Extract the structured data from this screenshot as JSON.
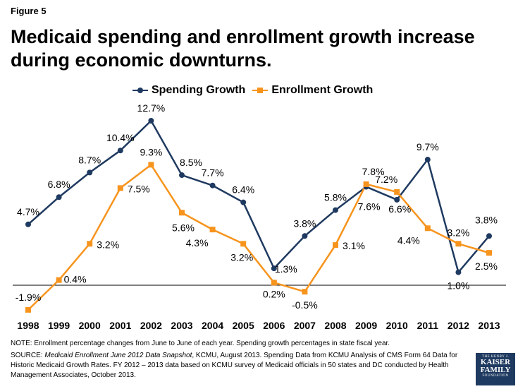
{
  "figure_label": "Figure 5",
  "title": "Medicaid spending and enrollment growth increase during economic downturns.",
  "note": "NOTE: Enrollment percentage changes from June to June of each year. Spending growth percentages in state fiscal year.",
  "source": {
    "prefix": "SOURCE: ",
    "italic": "Medicaid Enrollment June 2012 Data Snapshot",
    "rest": ", KCMU, August 2013. Spending Data from KCMU Analysis of CMS Form 64 Data for Historic Medicaid Growth Rates.  FY 2012 – 2013 data based on KCMU survey of Medicaid officials in 50 states and DC conducted by Health Management Associates, October 2013."
  },
  "logo": {
    "line1": "THE HENRY J.",
    "line2": "KAISER",
    "line3": "FAMILY",
    "line4": "FOUNDATION"
  },
  "chart_data": {
    "type": "line",
    "title": "",
    "xlabel": "",
    "ylabel": "",
    "categories": [
      "1998",
      "1999",
      "2000",
      "2001",
      "2002",
      "2003",
      "2004",
      "2005",
      "2006",
      "2007",
      "2008",
      "2009",
      "2010",
      "2011",
      "2012",
      "2013"
    ],
    "ylim": [
      -2.5,
      13.5
    ],
    "grid": false,
    "legend_position": "top-center",
    "series": [
      {
        "name": "Spending Growth",
        "color": "#1f3a60",
        "marker": "circle",
        "values": [
          4.7,
          6.8,
          8.7,
          10.4,
          12.7,
          8.5,
          7.7,
          6.4,
          1.3,
          3.8,
          5.8,
          7.6,
          6.6,
          9.7,
          1.0,
          3.8
        ],
        "labels": [
          "4.7%",
          "6.8%",
          "8.7%",
          "10.4%",
          "12.7%",
          "8.5%",
          "7.7%",
          "6.4%",
          "1.3%",
          "3.8%",
          "5.8%",
          "7.6%",
          "6.6%",
          "9.7%",
          "1.0%",
          "3.8%"
        ]
      },
      {
        "name": "Enrollment Growth",
        "color": "#f7941d",
        "marker": "square",
        "values": [
          -1.9,
          0.4,
          3.2,
          7.5,
          9.3,
          5.6,
          4.3,
          3.2,
          0.2,
          -0.5,
          3.1,
          7.8,
          7.2,
          4.4,
          3.2,
          2.5
        ],
        "labels": [
          "-1.9%",
          "0.4%",
          "3.2%",
          "7.5%",
          "9.3%",
          "5.6%",
          "4.3%",
          "3.2%",
          "0.2%",
          "-0.5%",
          "3.1%",
          "7.8%",
          "7.2%",
          "4.4%",
          "3.2%",
          "2.5%"
        ]
      }
    ]
  }
}
